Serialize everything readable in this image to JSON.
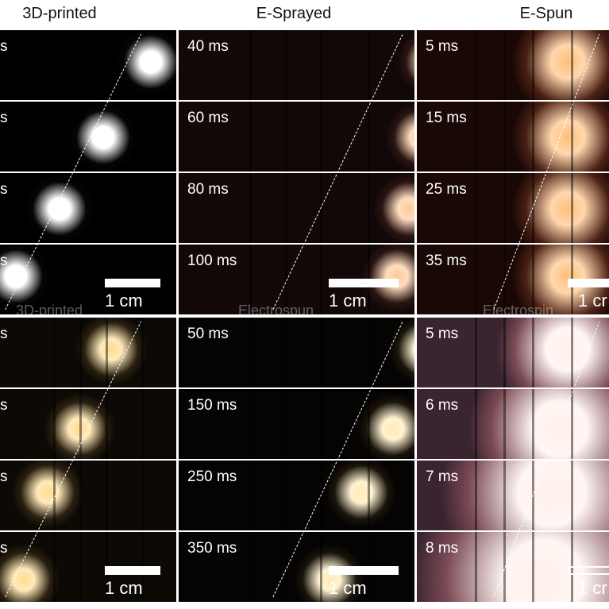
{
  "column_headers": [
    "3D-printed",
    "E-Sprayed",
    "E-Spun"
  ],
  "blocks": [
    {
      "rows": [
        [
          "s",
          "40 ms",
          "5 ms"
        ],
        [
          "s",
          "60 ms",
          "15 ms"
        ],
        [
          "s",
          "80 ms",
          "25 ms"
        ],
        [
          "s",
          "100 ms",
          "35 ms"
        ]
      ],
      "scale_bars": [
        "1 cm",
        "1 cm",
        "1 cr"
      ],
      "captions": [
        "3D-printed",
        "Electrospun",
        "Electrospin"
      ]
    },
    {
      "rows": [
        [
          "s",
          "50 ms",
          "5 ms"
        ],
        [
          "s",
          "150 ms",
          "6 ms"
        ],
        [
          "s",
          "250 ms",
          "7 ms"
        ],
        [
          "s",
          "350 ms",
          "8 ms"
        ]
      ],
      "scale_bars": [
        "1 cm",
        "1 cm",
        "1 cr"
      ]
    }
  ]
}
